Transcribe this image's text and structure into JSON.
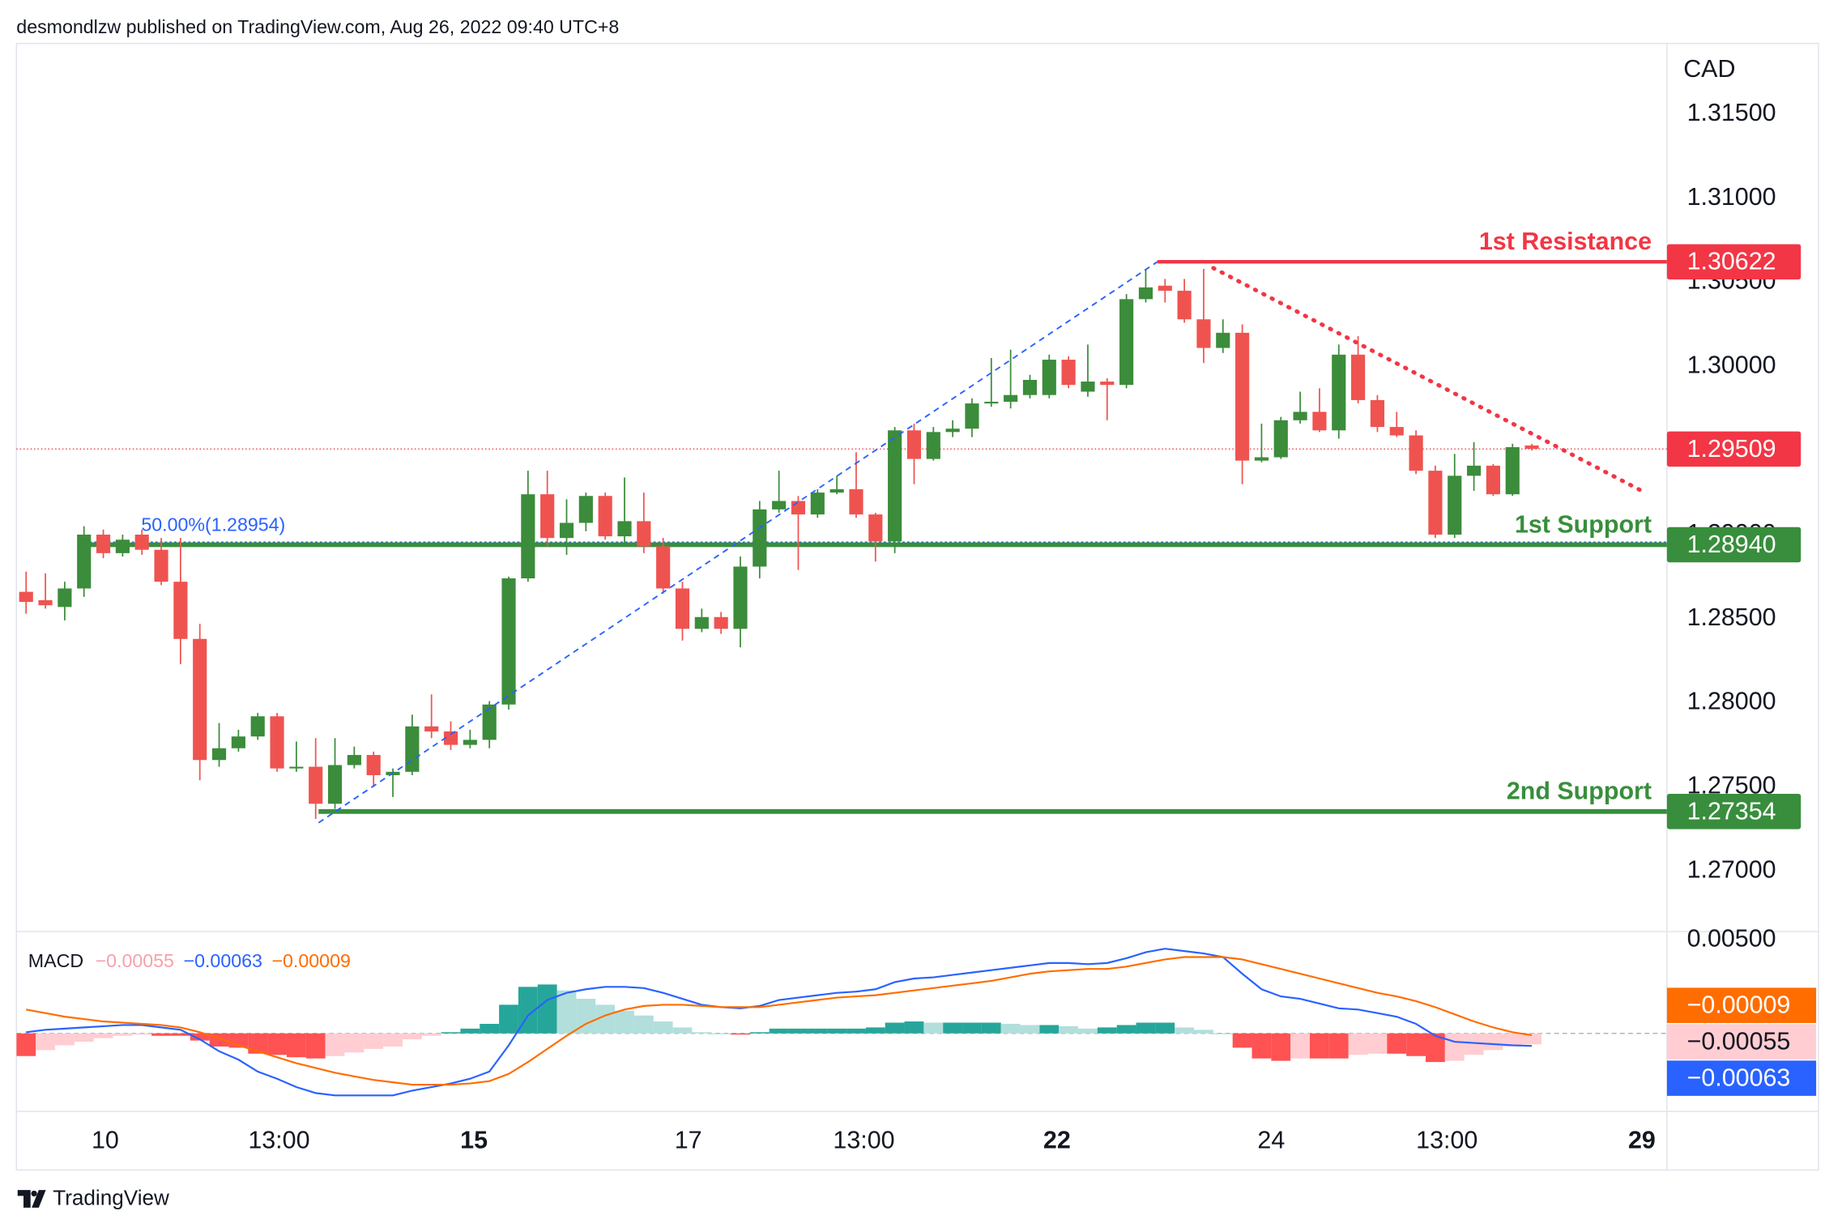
{
  "header": "desmondlzw published on TradingView.com, Aug 26, 2022 09:40 UTC+8",
  "footer": "TradingView",
  "chart_data": [
    {
      "type": "candlestick",
      "currency": "CAD",
      "up_color": "#3b8c3b",
      "down_color": "#ef5350",
      "xlim": [
        -0.5,
        85
      ],
      "ylim": [
        1.2664,
        1.3192
      ],
      "yticks": [
        {
          "value": 1.315,
          "label": "1.31500"
        },
        {
          "value": 1.31,
          "label": "1.31000"
        },
        {
          "value": 1.305,
          "label": "1.30500"
        },
        {
          "value": 1.3,
          "label": "1.30000"
        },
        {
          "value": 1.295,
          "label": "1.29500"
        },
        {
          "value": 1.29,
          "label": "1.29000"
        },
        {
          "value": 1.285,
          "label": "1.28500"
        },
        {
          "value": 1.28,
          "label": "1.28000"
        },
        {
          "value": 1.275,
          "label": "1.27500"
        },
        {
          "value": 1.27,
          "label": "1.27000"
        }
      ],
      "open": [
        1.2866,
        1.2861,
        1.2857,
        1.2868,
        1.29,
        1.2889,
        1.29,
        1.2891,
        1.2872,
        1.2838,
        1.2766,
        1.2773,
        1.278,
        1.2792,
        1.2761,
        1.2762,
        1.274,
        1.2763,
        1.2769,
        1.2757,
        1.2759,
        1.2786,
        1.2783,
        1.2775,
        1.2778,
        1.2799,
        1.2874,
        1.2924,
        1.2898,
        1.2907,
        1.2923,
        1.2899,
        1.2908,
        1.2893,
        1.2868,
        1.2844,
        1.2851,
        1.2844,
        1.2881,
        1.2915,
        1.292,
        1.2912,
        1.2925,
        1.2927,
        1.2912,
        1.2896,
        1.2962,
        1.2945,
        1.2961,
        1.2963,
        1.2978,
        1.2979,
        1.2983,
        1.2983,
        1.3004,
        1.2985,
        1.2991,
        1.2989,
        1.304,
        1.3048,
        1.3045,
        1.3028,
        1.3011,
        1.302,
        1.2944,
        1.2946,
        1.2968,
        1.2973,
        1.2962,
        1.3007,
        1.298,
        1.2964,
        1.2959,
        1.2938,
        1.29,
        1.2935,
        1.2941,
        1.2924,
        1.2953
      ],
      "high": [
        1.2878,
        1.2877,
        1.2872,
        1.2905,
        1.2903,
        1.29,
        1.2903,
        1.2898,
        1.2898,
        1.2847,
        1.2788,
        1.2784,
        1.2794,
        1.2794,
        1.2777,
        1.2779,
        1.2779,
        1.2774,
        1.2771,
        1.2761,
        1.2793,
        1.2805,
        1.2789,
        1.2784,
        1.2801,
        1.2875,
        1.2938,
        1.2938,
        1.2921,
        1.2925,
        1.2925,
        1.2934,
        1.2925,
        1.2898,
        1.2872,
        1.2856,
        1.2854,
        1.2887,
        1.292,
        1.2938,
        1.2923,
        1.2927,
        1.2935,
        1.2949,
        1.2913,
        1.2964,
        1.2966,
        1.2964,
        1.2968,
        1.2981,
        1.3005,
        1.301,
        1.2995,
        1.3007,
        1.3006,
        1.3013,
        1.2993,
        1.3043,
        1.3058,
        1.3052,
        1.3052,
        1.3058,
        1.3028,
        1.3025,
        1.2966,
        1.297,
        1.2985,
        1.2987,
        1.3013,
        1.3018,
        1.2983,
        1.2973,
        1.2962,
        1.2941,
        1.2948,
        1.2955,
        1.2942,
        1.2954,
        1.2954
      ],
      "low": [
        1.2853,
        1.2856,
        1.2849,
        1.2863,
        1.2886,
        1.2887,
        1.2888,
        1.287,
        1.2823,
        1.2754,
        1.2762,
        1.2771,
        1.2778,
        1.2759,
        1.2759,
        1.2731,
        1.2737,
        1.2761,
        1.275,
        1.2744,
        1.2757,
        1.2779,
        1.2772,
        1.2773,
        1.2773,
        1.2796,
        1.2872,
        1.2893,
        1.2888,
        1.2902,
        1.2897,
        1.2894,
        1.2889,
        1.2865,
        1.2837,
        1.2842,
        1.2841,
        1.2833,
        1.2874,
        1.2913,
        1.2879,
        1.291,
        1.2924,
        1.291,
        1.2884,
        1.2889,
        1.293,
        1.2944,
        1.2958,
        1.2958,
        1.2976,
        1.2975,
        1.2981,
        1.2981,
        1.2987,
        1.2982,
        1.2968,
        1.2987,
        1.3038,
        1.3038,
        1.3026,
        1.3002,
        1.3008,
        1.293,
        1.2943,
        1.2945,
        1.2966,
        1.2961,
        1.2957,
        1.2978,
        1.2961,
        1.2958,
        1.2936,
        1.2898,
        1.2898,
        1.2926,
        1.2923,
        1.2923,
        1.295
      ],
      "close": [
        1.286,
        1.2858,
        1.2868,
        1.29,
        1.2889,
        1.2897,
        1.2891,
        1.2872,
        1.2838,
        1.2766,
        1.2773,
        1.278,
        1.2792,
        1.2761,
        1.2762,
        1.274,
        1.2763,
        1.2769,
        1.2757,
        1.2759,
        1.2786,
        1.2783,
        1.2775,
        1.2778,
        1.2799,
        1.2874,
        1.2924,
        1.2898,
        1.2907,
        1.2923,
        1.2899,
        1.2908,
        1.2893,
        1.2868,
        1.2844,
        1.2851,
        1.2844,
        1.2881,
        1.2915,
        1.292,
        1.2912,
        1.2925,
        1.2927,
        1.2912,
        1.2896,
        1.2962,
        1.2945,
        1.2961,
        1.2963,
        1.2978,
        1.2979,
        1.2983,
        1.2992,
        1.3004,
        1.2989,
        1.2991,
        1.2989,
        1.304,
        1.3047,
        1.3045,
        1.3028,
        1.3011,
        1.302,
        1.2944,
        1.2946,
        1.2968,
        1.2973,
        1.2962,
        1.3007,
        1.298,
        1.2964,
        1.2959,
        1.2938,
        1.29,
        1.2935,
        1.2941,
        1.2924,
        1.2952,
        1.2951
      ],
      "levels": [
        {
          "name": "1st Resistance",
          "value": 1.30622,
          "value_label": "1.30622",
          "x_start": 58.6,
          "color": "#f23645",
          "width": 3
        },
        {
          "name": "1st Support",
          "value": 1.2894,
          "value_label": "1.28940",
          "x_start": 2.8,
          "color": "#388e3c",
          "width": 4
        },
        {
          "name": "2nd Support",
          "value": 1.27354,
          "value_label": "1.27354",
          "x_start": 15.15,
          "color": "#388e3c",
          "width": 4
        }
      ],
      "fib": {
        "label": "50.00%(1.28954)",
        "value": 1.28954,
        "x_start": 2.8,
        "color": "#2962ff"
      },
      "last_price": {
        "value": 1.29509,
        "value_label": "1.29509",
        "color": "#f23645"
      },
      "trendlines": [
        {
          "x": [
            15.15,
            58.6
          ],
          "y": [
            1.27287,
            1.30622
          ],
          "color": "#2962ff",
          "style": "dashed"
        },
        {
          "x": [
            61.5,
            83.75
          ],
          "y": [
            1.30585,
            1.29257
          ],
          "color": "#f23645",
          "style": "dotted"
        }
      ]
    },
    {
      "type": "macd",
      "title": "MACD",
      "xlim": [
        -0.5,
        85
      ],
      "ylim": [
        -0.00392,
        0.00512
      ],
      "yticks": [
        {
          "value": 0.005,
          "label": "0.00500"
        }
      ],
      "xticks": [
        {
          "value": 4.1,
          "label": "10"
        },
        {
          "value": 13.1,
          "label": "13:00"
        },
        {
          "value": 23.2,
          "label": "15",
          "bold": true
        },
        {
          "value": 34.3,
          "label": "17"
        },
        {
          "value": 43.4,
          "label": "13:00"
        },
        {
          "value": 53.4,
          "label": "22",
          "bold": true
        },
        {
          "value": 64.5,
          "label": "24"
        },
        {
          "value": 73.6,
          "label": "13:00"
        },
        {
          "value": 83.7,
          "label": "29",
          "bold": true
        }
      ],
      "hist_colors": [
        "#26a69a",
        "#b2dfdb",
        "#ff5252",
        "#ffcdd2"
      ],
      "series": [
        {
          "type": "histogram",
          "color": "#f7a1a9",
          "label_color": "#ffcdd2",
          "value_label": "−0.00055",
          "values": [
            -0.00114,
            -0.00084,
            -0.0006,
            -0.00042,
            -0.00024,
            -0.00012,
            -6e-05,
            -0.00012,
            -0.00012,
            -0.00036,
            -0.00066,
            -0.00072,
            -0.00102,
            -0.00108,
            -0.0012,
            -0.00126,
            -0.00114,
            -0.00096,
            -0.00078,
            -0.00066,
            -0.0003,
            -0.00012,
            6e-05,
            0.00024,
            0.00048,
            0.00144,
            0.00234,
            0.00246,
            0.00216,
            0.00174,
            0.00144,
            0.00114,
            0.0009,
            0.0006,
            0.0003,
            6e-05,
            0,
            -6e-05,
            6e-05,
            0.00024,
            0.00024,
            0.00024,
            0.00024,
            0.00024,
            0.0003,
            0.00054,
            0.0006,
            0.00054,
            0.00054,
            0.00054,
            0.00054,
            0.00048,
            0.00042,
            0.00042,
            0.00036,
            0.00024,
            0.0003,
            0.00042,
            0.00054,
            0.00054,
            0.0003,
            0.00018,
            0,
            -0.00072,
            -0.00126,
            -0.00138,
            -0.00126,
            -0.00126,
            -0.00126,
            -0.00108,
            -0.00102,
            -0.00102,
            -0.00114,
            -0.00144,
            -0.00138,
            -0.00108,
            -0.00084,
            -0.00066,
            -0.00055
          ]
        },
        {
          "type": "line",
          "color": "#2962ff",
          "value_label": "−0.00063",
          "values": [
            6e-05,
            0.00018,
            0.00024,
            0.0003,
            0.00036,
            0.00042,
            0.00042,
            0.0003,
            0.00018,
            -0.0003,
            -0.0009,
            -0.00132,
            -0.00192,
            -0.00228,
            -0.0027,
            -0.003,
            -0.00312,
            -0.00312,
            -0.00312,
            -0.00312,
            -0.00288,
            -0.0027,
            -0.00252,
            -0.00228,
            -0.00192,
            -0.0006,
            0.0009,
            0.00168,
            0.00204,
            0.00222,
            0.00234,
            0.00234,
            0.00228,
            0.00204,
            0.00174,
            0.00144,
            0.00132,
            0.00126,
            0.00138,
            0.00168,
            0.0018,
            0.00192,
            0.00204,
            0.0021,
            0.00222,
            0.00258,
            0.00276,
            0.00282,
            0.00294,
            0.00306,
            0.00318,
            0.0033,
            0.00342,
            0.00354,
            0.00354,
            0.00348,
            0.00354,
            0.00378,
            0.00408,
            0.00426,
            0.00414,
            0.00402,
            0.00384,
            0.003,
            0.00222,
            0.00186,
            0.00174,
            0.0015,
            0.00126,
            0.0012,
            0.00102,
            0.00084,
            0.00048,
            -0.00012,
            -0.00042,
            -0.00048,
            -0.00054,
            -0.0006,
            -0.00063
          ]
        },
        {
          "type": "line",
          "color": "#ff6d00",
          "value_label": "−0.00009",
          "values": [
            0.0012,
            0.00102,
            0.00084,
            0.00072,
            0.0006,
            0.00054,
            0.00048,
            0.00042,
            0.0003,
            6e-05,
            -0.00024,
            -0.0006,
            -0.0009,
            -0.0012,
            -0.0015,
            -0.00174,
            -0.00198,
            -0.00216,
            -0.00234,
            -0.00246,
            -0.00258,
            -0.00258,
            -0.00258,
            -0.00252,
            -0.0024,
            -0.00204,
            -0.00144,
            -0.00078,
            -0.00012,
            0.00048,
            0.0009,
            0.0012,
            0.00138,
            0.00144,
            0.00144,
            0.00138,
            0.00132,
            0.00132,
            0.00132,
            0.00144,
            0.00156,
            0.00168,
            0.0018,
            0.00186,
            0.00192,
            0.00204,
            0.00216,
            0.00228,
            0.0024,
            0.00252,
            0.00264,
            0.00282,
            0.003,
            0.00312,
            0.00318,
            0.00324,
            0.00324,
            0.00336,
            0.00354,
            0.00372,
            0.00384,
            0.00384,
            0.00384,
            0.00372,
            0.00348,
            0.00324,
            0.003,
            0.00276,
            0.00252,
            0.00228,
            0.00204,
            0.00186,
            0.00162,
            0.00132,
            0.00096,
            0.0006,
            0.0003,
            6e-05,
            -9e-05
          ]
        }
      ]
    }
  ]
}
